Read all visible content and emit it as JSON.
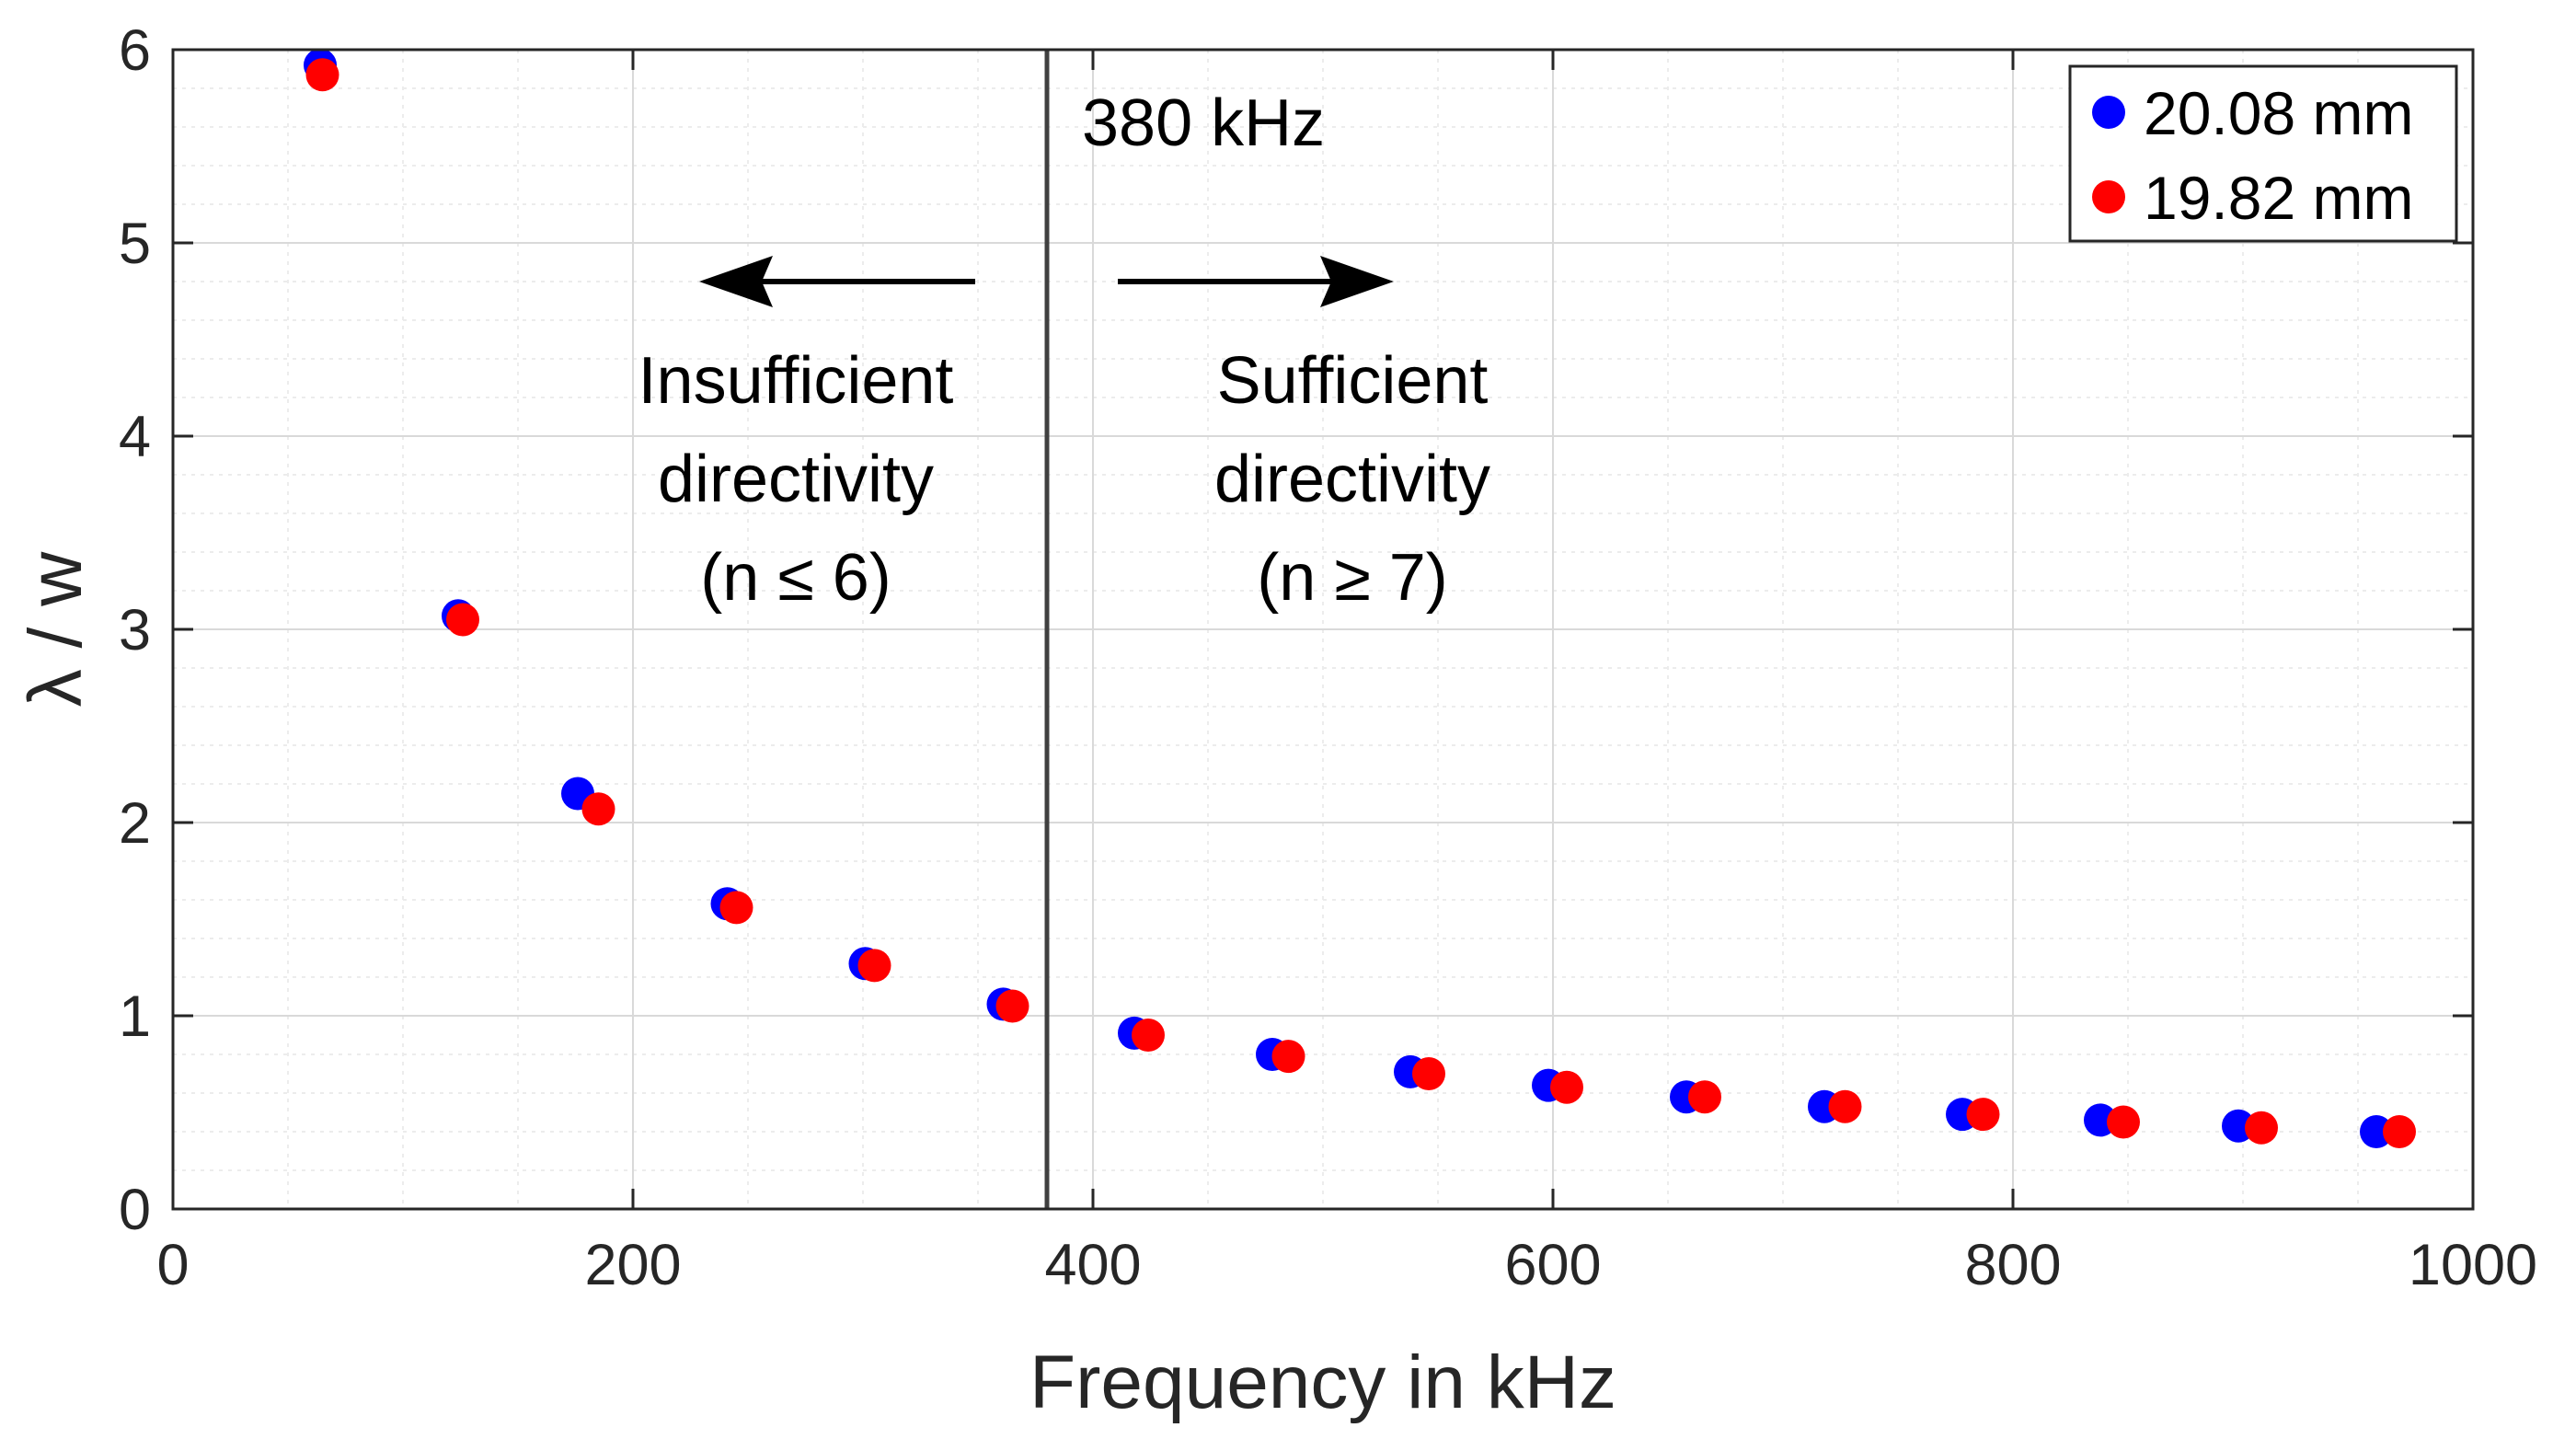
{
  "chart_data": {
    "type": "scatter",
    "title": "",
    "xlabel": "Frequency in kHz",
    "ylabel": "λ / w",
    "xlim": [
      0,
      1000
    ],
    "ylim": [
      0,
      6
    ],
    "xticks": [
      0,
      200,
      400,
      600,
      800,
      1000
    ],
    "yticks": [
      0,
      1,
      2,
      3,
      4,
      5,
      6
    ],
    "xtick_labels": [
      "0",
      "200",
      "400",
      "600",
      "800",
      "1000"
    ],
    "ytick_labels": [
      "0",
      "1",
      "2",
      "3",
      "4",
      "5",
      "6"
    ],
    "grid": true,
    "minor_grid": true,
    "legend_position": "top-right",
    "series": [
      {
        "name": "20.08 mm",
        "color": "#0000ff",
        "x": [
          64,
          124,
          176,
          241,
          301,
          361,
          418,
          478,
          538,
          598,
          658,
          718,
          778,
          838,
          898,
          958
        ],
        "y": [
          5.92,
          3.07,
          2.15,
          1.58,
          1.27,
          1.06,
          0.91,
          0.8,
          0.71,
          0.64,
          0.58,
          0.53,
          0.49,
          0.46,
          0.43,
          0.4
        ]
      },
      {
        "name": "19.82 mm",
        "color": "#ff0000",
        "x": [
          65,
          126,
          185,
          245,
          305,
          365,
          424,
          485,
          546,
          606,
          666,
          727,
          787,
          848,
          908,
          968
        ],
        "y": [
          5.87,
          3.05,
          2.07,
          1.56,
          1.26,
          1.05,
          0.9,
          0.79,
          0.7,
          0.63,
          0.58,
          0.53,
          0.49,
          0.45,
          0.42,
          0.4
        ]
      }
    ],
    "vline": {
      "x": 380,
      "label": "380 kHz",
      "color": "#404040"
    },
    "annotations": {
      "left_lines": [
        "Insufficient",
        "directivity",
        "(n ≤ 6)"
      ],
      "right_lines": [
        "Sufficient",
        "directivity",
        "(n ≥ 7)"
      ]
    }
  }
}
